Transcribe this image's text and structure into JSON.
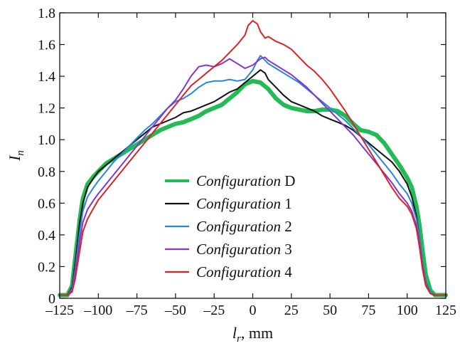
{
  "chart_data": {
    "type": "line",
    "xlabel": {
      "main": "l",
      "sub": "r",
      "unit": ", mm"
    },
    "ylabel": {
      "main": "I",
      "sub": "n"
    },
    "xlim": [
      -125,
      125
    ],
    "ylim": [
      0,
      1.8
    ],
    "x_ticks": [
      "–125",
      "–100",
      "–75",
      "–50",
      "–25",
      "0",
      "25",
      "50",
      "75",
      "100",
      "125"
    ],
    "x_tick_values": [
      -125,
      -100,
      -75,
      -50,
      -25,
      0,
      25,
      50,
      75,
      100,
      125
    ],
    "y_ticks": [
      "0",
      "0.2",
      "0.4",
      "0.6",
      "0.8",
      "1.0",
      "1.2",
      "1.4",
      "1.6",
      "1.8"
    ],
    "y_tick_values": [
      0,
      0.2,
      0.4,
      0.6,
      0.8,
      1.0,
      1.2,
      1.4,
      1.6,
      1.8
    ],
    "grid": false,
    "legend_position": "lower-center",
    "series": [
      {
        "name": "Configuration D",
        "name_italic": "Configuration",
        "name_plain": "D",
        "color": "#22bb55",
        "points": [
          [
            -125,
            0.02
          ],
          [
            -120,
            0.02
          ],
          [
            -117,
            0.08
          ],
          [
            -115,
            0.25
          ],
          [
            -112,
            0.5
          ],
          [
            -110,
            0.63
          ],
          [
            -107,
            0.72
          ],
          [
            -103,
            0.77
          ],
          [
            -100,
            0.8
          ],
          [
            -95,
            0.85
          ],
          [
            -90,
            0.88
          ],
          [
            -85,
            0.91
          ],
          [
            -80,
            0.94
          ],
          [
            -75,
            0.97
          ],
          [
            -70,
            1.0
          ],
          [
            -65,
            1.03
          ],
          [
            -60,
            1.06
          ],
          [
            -55,
            1.08
          ],
          [
            -50,
            1.1
          ],
          [
            -45,
            1.11
          ],
          [
            -40,
            1.13
          ],
          [
            -35,
            1.15
          ],
          [
            -30,
            1.18
          ],
          [
            -25,
            1.2
          ],
          [
            -20,
            1.22
          ],
          [
            -15,
            1.26
          ],
          [
            -10,
            1.3
          ],
          [
            -5,
            1.35
          ],
          [
            0,
            1.37
          ],
          [
            5,
            1.36
          ],
          [
            10,
            1.32
          ],
          [
            15,
            1.26
          ],
          [
            20,
            1.22
          ],
          [
            25,
            1.2
          ],
          [
            30,
            1.19
          ],
          [
            35,
            1.18
          ],
          [
            40,
            1.18
          ],
          [
            45,
            1.19
          ],
          [
            50,
            1.19
          ],
          [
            55,
            1.18
          ],
          [
            60,
            1.15
          ],
          [
            65,
            1.1
          ],
          [
            70,
            1.06
          ],
          [
            75,
            1.05
          ],
          [
            80,
            1.03
          ],
          [
            85,
            0.98
          ],
          [
            90,
            0.91
          ],
          [
            95,
            0.84
          ],
          [
            100,
            0.76
          ],
          [
            103,
            0.7
          ],
          [
            106,
            0.58
          ],
          [
            108,
            0.46
          ],
          [
            110,
            0.3
          ],
          [
            112,
            0.15
          ],
          [
            115,
            0.05
          ],
          [
            118,
            0.02
          ],
          [
            125,
            0.02
          ]
        ]
      },
      {
        "name": "Configuration 1",
        "name_italic": "Configuration",
        "name_plain": "1",
        "color": "#111111",
        "points": [
          [
            -125,
            0.02
          ],
          [
            -120,
            0.02
          ],
          [
            -117,
            0.07
          ],
          [
            -115,
            0.22
          ],
          [
            -112,
            0.48
          ],
          [
            -110,
            0.6
          ],
          [
            -107,
            0.7
          ],
          [
            -103,
            0.76
          ],
          [
            -100,
            0.8
          ],
          [
            -95,
            0.84
          ],
          [
            -90,
            0.88
          ],
          [
            -85,
            0.92
          ],
          [
            -80,
            0.96
          ],
          [
            -75,
            1.0
          ],
          [
            -70,
            1.04
          ],
          [
            -65,
            1.08
          ],
          [
            -60,
            1.1
          ],
          [
            -55,
            1.12
          ],
          [
            -50,
            1.14
          ],
          [
            -45,
            1.17
          ],
          [
            -40,
            1.18
          ],
          [
            -35,
            1.2
          ],
          [
            -30,
            1.22
          ],
          [
            -25,
            1.24
          ],
          [
            -20,
            1.27
          ],
          [
            -15,
            1.3
          ],
          [
            -10,
            1.32
          ],
          [
            -5,
            1.36
          ],
          [
            0,
            1.4
          ],
          [
            5,
            1.44
          ],
          [
            8,
            1.42
          ],
          [
            10,
            1.38
          ],
          [
            15,
            1.33
          ],
          [
            20,
            1.28
          ],
          [
            25,
            1.24
          ],
          [
            30,
            1.22
          ],
          [
            35,
            1.2
          ],
          [
            40,
            1.18
          ],
          [
            45,
            1.15
          ],
          [
            50,
            1.13
          ],
          [
            55,
            1.11
          ],
          [
            60,
            1.09
          ],
          [
            65,
            1.06
          ],
          [
            70,
            1.02
          ],
          [
            75,
            0.98
          ],
          [
            80,
            0.94
          ],
          [
            85,
            0.9
          ],
          [
            90,
            0.86
          ],
          [
            95,
            0.8
          ],
          [
            100,
            0.72
          ],
          [
            103,
            0.64
          ],
          [
            106,
            0.52
          ],
          [
            108,
            0.38
          ],
          [
            110,
            0.22
          ],
          [
            112,
            0.1
          ],
          [
            115,
            0.04
          ],
          [
            118,
            0.02
          ],
          [
            125,
            0.02
          ]
        ]
      },
      {
        "name": "Configuration 2",
        "name_italic": "Configuration",
        "name_plain": "2",
        "color": "#2288dd",
        "points": [
          [
            -125,
            0.02
          ],
          [
            -120,
            0.02
          ],
          [
            -117,
            0.06
          ],
          [
            -115,
            0.18
          ],
          [
            -112,
            0.42
          ],
          [
            -110,
            0.55
          ],
          [
            -107,
            0.64
          ],
          [
            -103,
            0.7
          ],
          [
            -100,
            0.74
          ],
          [
            -95,
            0.8
          ],
          [
            -90,
            0.86
          ],
          [
            -85,
            0.91
          ],
          [
            -80,
            0.96
          ],
          [
            -75,
            1.01
          ],
          [
            -70,
            1.06
          ],
          [
            -65,
            1.1
          ],
          [
            -60,
            1.15
          ],
          [
            -55,
            1.2
          ],
          [
            -50,
            1.24
          ],
          [
            -45,
            1.26
          ],
          [
            -40,
            1.29
          ],
          [
            -35,
            1.33
          ],
          [
            -30,
            1.36
          ],
          [
            -25,
            1.37
          ],
          [
            -20,
            1.37
          ],
          [
            -15,
            1.38
          ],
          [
            -10,
            1.37
          ],
          [
            -5,
            1.38
          ],
          [
            0,
            1.44
          ],
          [
            3,
            1.5
          ],
          [
            5,
            1.53
          ],
          [
            8,
            1.5
          ],
          [
            10,
            1.48
          ],
          [
            15,
            1.45
          ],
          [
            20,
            1.42
          ],
          [
            25,
            1.39
          ],
          [
            30,
            1.36
          ],
          [
            35,
            1.32
          ],
          [
            40,
            1.28
          ],
          [
            45,
            1.24
          ],
          [
            50,
            1.2
          ],
          [
            55,
            1.16
          ],
          [
            60,
            1.12
          ],
          [
            65,
            1.07
          ],
          [
            70,
            1.02
          ],
          [
            75,
            0.97
          ],
          [
            80,
            0.91
          ],
          [
            85,
            0.85
          ],
          [
            90,
            0.79
          ],
          [
            95,
            0.72
          ],
          [
            100,
            0.66
          ],
          [
            103,
            0.6
          ],
          [
            106,
            0.5
          ],
          [
            108,
            0.38
          ],
          [
            110,
            0.22
          ],
          [
            112,
            0.1
          ],
          [
            115,
            0.04
          ],
          [
            118,
            0.02
          ],
          [
            125,
            0.02
          ]
        ]
      },
      {
        "name": "Configuration 3",
        "name_italic": "Configuration",
        "name_plain": "3",
        "color": "#8833cc",
        "points": [
          [
            -125,
            0.02
          ],
          [
            -120,
            0.02
          ],
          [
            -117,
            0.05
          ],
          [
            -115,
            0.15
          ],
          [
            -112,
            0.36
          ],
          [
            -110,
            0.48
          ],
          [
            -107,
            0.56
          ],
          [
            -103,
            0.62
          ],
          [
            -100,
            0.66
          ],
          [
            -95,
            0.72
          ],
          [
            -90,
            0.78
          ],
          [
            -85,
            0.84
          ],
          [
            -80,
            0.9
          ],
          [
            -75,
            0.96
          ],
          [
            -70,
            1.02
          ],
          [
            -65,
            1.08
          ],
          [
            -60,
            1.14
          ],
          [
            -55,
            1.2
          ],
          [
            -50,
            1.25
          ],
          [
            -45,
            1.32
          ],
          [
            -40,
            1.4
          ],
          [
            -35,
            1.46
          ],
          [
            -30,
            1.47
          ],
          [
            -25,
            1.46
          ],
          [
            -20,
            1.48
          ],
          [
            -15,
            1.51
          ],
          [
            -10,
            1.48
          ],
          [
            -5,
            1.45
          ],
          [
            0,
            1.47
          ],
          [
            5,
            1.51
          ],
          [
            8,
            1.52
          ],
          [
            10,
            1.5
          ],
          [
            15,
            1.47
          ],
          [
            20,
            1.44
          ],
          [
            25,
            1.41
          ],
          [
            30,
            1.37
          ],
          [
            35,
            1.33
          ],
          [
            40,
            1.28
          ],
          [
            45,
            1.23
          ],
          [
            50,
            1.18
          ],
          [
            55,
            1.13
          ],
          [
            60,
            1.08
          ],
          [
            65,
            1.03
          ],
          [
            70,
            0.97
          ],
          [
            75,
            0.91
          ],
          [
            80,
            0.85
          ],
          [
            85,
            0.79
          ],
          [
            90,
            0.73
          ],
          [
            95,
            0.66
          ],
          [
            100,
            0.6
          ],
          [
            103,
            0.55
          ],
          [
            106,
            0.46
          ],
          [
            108,
            0.35
          ],
          [
            110,
            0.2
          ],
          [
            112,
            0.09
          ],
          [
            115,
            0.03
          ],
          [
            118,
            0.02
          ],
          [
            125,
            0.02
          ]
        ]
      },
      {
        "name": "Configuration 4",
        "name_italic": "Configuration",
        "name_plain": "4",
        "color": "#dd2222",
        "points": [
          [
            -125,
            0.02
          ],
          [
            -120,
            0.02
          ],
          [
            -117,
            0.04
          ],
          [
            -115,
            0.12
          ],
          [
            -112,
            0.3
          ],
          [
            -110,
            0.42
          ],
          [
            -107,
            0.5
          ],
          [
            -103,
            0.57
          ],
          [
            -100,
            0.62
          ],
          [
            -95,
            0.68
          ],
          [
            -90,
            0.74
          ],
          [
            -85,
            0.8
          ],
          [
            -80,
            0.86
          ],
          [
            -75,
            0.92
          ],
          [
            -70,
            0.98
          ],
          [
            -65,
            1.04
          ],
          [
            -60,
            1.1
          ],
          [
            -55,
            1.16
          ],
          [
            -50,
            1.22
          ],
          [
            -45,
            1.28
          ],
          [
            -40,
            1.34
          ],
          [
            -35,
            1.38
          ],
          [
            -30,
            1.42
          ],
          [
            -25,
            1.46
          ],
          [
            -20,
            1.5
          ],
          [
            -15,
            1.55
          ],
          [
            -10,
            1.6
          ],
          [
            -5,
            1.66
          ],
          [
            -3,
            1.72
          ],
          [
            0,
            1.75
          ],
          [
            3,
            1.73
          ],
          [
            5,
            1.68
          ],
          [
            8,
            1.64
          ],
          [
            10,
            1.65
          ],
          [
            15,
            1.62
          ],
          [
            20,
            1.6
          ],
          [
            25,
            1.57
          ],
          [
            30,
            1.52
          ],
          [
            35,
            1.47
          ],
          [
            40,
            1.43
          ],
          [
            45,
            1.38
          ],
          [
            50,
            1.32
          ],
          [
            55,
            1.25
          ],
          [
            60,
            1.18
          ],
          [
            65,
            1.1
          ],
          [
            70,
            1.02
          ],
          [
            75,
            0.94
          ],
          [
            80,
            0.86
          ],
          [
            85,
            0.78
          ],
          [
            90,
            0.7
          ],
          [
            95,
            0.63
          ],
          [
            100,
            0.58
          ],
          [
            103,
            0.53
          ],
          [
            106,
            0.44
          ],
          [
            108,
            0.32
          ],
          [
            110,
            0.18
          ],
          [
            112,
            0.08
          ],
          [
            115,
            0.03
          ],
          [
            118,
            0.02
          ],
          [
            125,
            0.02
          ]
        ]
      }
    ]
  }
}
